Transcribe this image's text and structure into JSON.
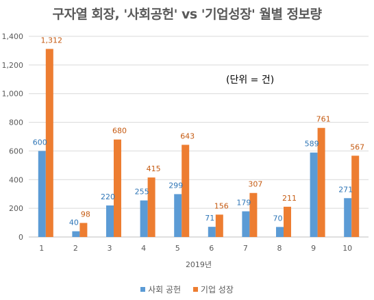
{
  "chart_data": {
    "type": "bar",
    "title": "구자열 회장, '사회공헌' vs '기업성장' 월별 정보량",
    "annotation": "(단위 = 건)",
    "xlabel": "2019년",
    "ylabel": "",
    "categories": [
      "1",
      "2",
      "3",
      "4",
      "5",
      "6",
      "7",
      "8",
      "9",
      "10"
    ],
    "ylim": [
      0,
      1400
    ],
    "yticks": [
      0,
      200,
      400,
      600,
      800,
      1000,
      1200,
      1400
    ],
    "ytick_labels": [
      "0",
      "200",
      "400",
      "600",
      "800",
      "1,000",
      "1,200",
      "1,400"
    ],
    "grid": true,
    "legend_position": "bottom",
    "series": [
      {
        "name": "사회 공헌",
        "color": "#5b9bd5",
        "label_color": "#2e75b6",
        "values": [
          600,
          40,
          220,
          255,
          299,
          71,
          179,
          70,
          589,
          271
        ],
        "labels": [
          "600",
          "40",
          "220",
          "255",
          "299",
          "71",
          "179",
          "70",
          "589",
          "271"
        ]
      },
      {
        "name": "기업 성장",
        "color": "#ed7d31",
        "label_color": "#c55a11",
        "values": [
          1312,
          98,
          680,
          415,
          643,
          156,
          307,
          211,
          761,
          567
        ],
        "labels": [
          "1,312",
          "98",
          "680",
          "415",
          "643",
          "156",
          "307",
          "211",
          "761",
          "567"
        ]
      }
    ]
  }
}
